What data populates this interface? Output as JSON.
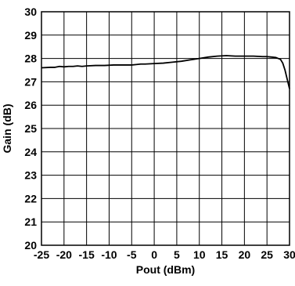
{
  "chart_data": {
    "type": "line",
    "title": "",
    "xlabel": "Pout (dBm)",
    "ylabel": "Gain (dB)",
    "xlim": [
      -25,
      30
    ],
    "ylim": [
      20,
      30
    ],
    "x_ticks": [
      -25,
      -20,
      -15,
      -10,
      -5,
      0,
      5,
      10,
      15,
      20,
      25,
      30
    ],
    "y_ticks": [
      20,
      21,
      22,
      23,
      24,
      25,
      26,
      27,
      28,
      29,
      30
    ],
    "x_tick_labels": [
      "-25",
      "-20",
      "-15",
      "-10",
      "-5",
      "0",
      "5",
      "10",
      "15",
      "20",
      "25",
      "30"
    ],
    "y_tick_labels": [
      "20",
      "21",
      "22",
      "23",
      "24",
      "25",
      "26",
      "27",
      "28",
      "29",
      "30"
    ],
    "grid": true,
    "series": [
      {
        "x": [
          -25,
          -23,
          -22,
          -21,
          -20,
          -19,
          -18,
          -17,
          -16,
          -15,
          -13,
          -11,
          -9,
          -7,
          -5,
          -4,
          -3,
          -2,
          0,
          2,
          4,
          6,
          8,
          10,
          12,
          14,
          16,
          18,
          20,
          22,
          24,
          25,
          26,
          27,
          28,
          28.5,
          29,
          29.5,
          30
        ],
        "y": [
          27.6,
          27.62,
          27.62,
          27.66,
          27.64,
          27.66,
          27.66,
          27.68,
          27.66,
          27.68,
          27.7,
          27.7,
          27.72,
          27.72,
          27.72,
          27.74,
          27.76,
          27.76,
          27.78,
          27.8,
          27.84,
          27.88,
          27.94,
          28.0,
          28.06,
          28.1,
          28.12,
          28.1,
          28.1,
          28.1,
          28.08,
          28.08,
          28.06,
          28.04,
          27.96,
          27.8,
          27.5,
          27.1,
          26.7
        ],
        "color": "#000000"
      }
    ]
  }
}
